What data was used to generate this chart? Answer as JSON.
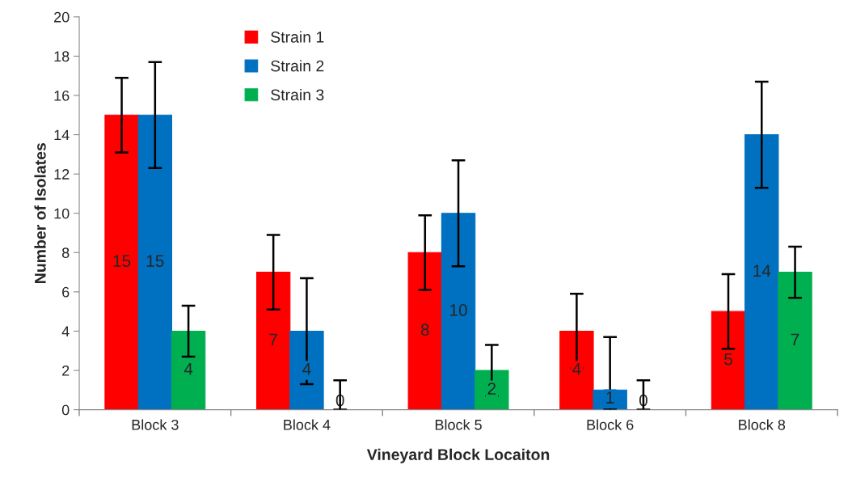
{
  "chart_data": {
    "type": "bar",
    "xlabel": "Vineyard Block Locaiton",
    "ylabel": "Number of Isolates",
    "categories": [
      "Block 3",
      "Block 4",
      "Block 5",
      "Block 6",
      "Block 8"
    ],
    "series": [
      {
        "name": "Strain 1",
        "color": "#ff0000",
        "values": [
          15,
          7,
          8,
          4,
          5
        ],
        "errors": [
          [
            13.1,
            16.9
          ],
          [
            5.1,
            8.9
          ],
          [
            6.1,
            9.9
          ],
          [
            2.1,
            5.9
          ],
          [
            3.1,
            6.9
          ]
        ]
      },
      {
        "name": "Strain 2",
        "color": "#0070c0",
        "values": [
          15,
          4,
          10,
          1,
          14
        ],
        "errors": [
          [
            12.3,
            17.7
          ],
          [
            1.3,
            6.7
          ],
          [
            7.3,
            12.7
          ],
          [
            0,
            3.7
          ],
          [
            11.3,
            16.7
          ]
        ]
      },
      {
        "name": "Strain 3",
        "color": "#00b050",
        "values": [
          4,
          0,
          2,
          0,
          7
        ],
        "errors": [
          [
            2.7,
            5.3
          ],
          [
            0,
            1.5
          ],
          [
            0.7,
            3.3
          ],
          [
            0,
            1.5
          ],
          [
            5.7,
            8.3
          ]
        ]
      }
    ],
    "ylim": [
      0,
      20
    ],
    "yticks": [
      0,
      2,
      4,
      6,
      8,
      10,
      12,
      14,
      16,
      18,
      20
    ],
    "grid": false,
    "legend": "top",
    "data_labels": true
  }
}
